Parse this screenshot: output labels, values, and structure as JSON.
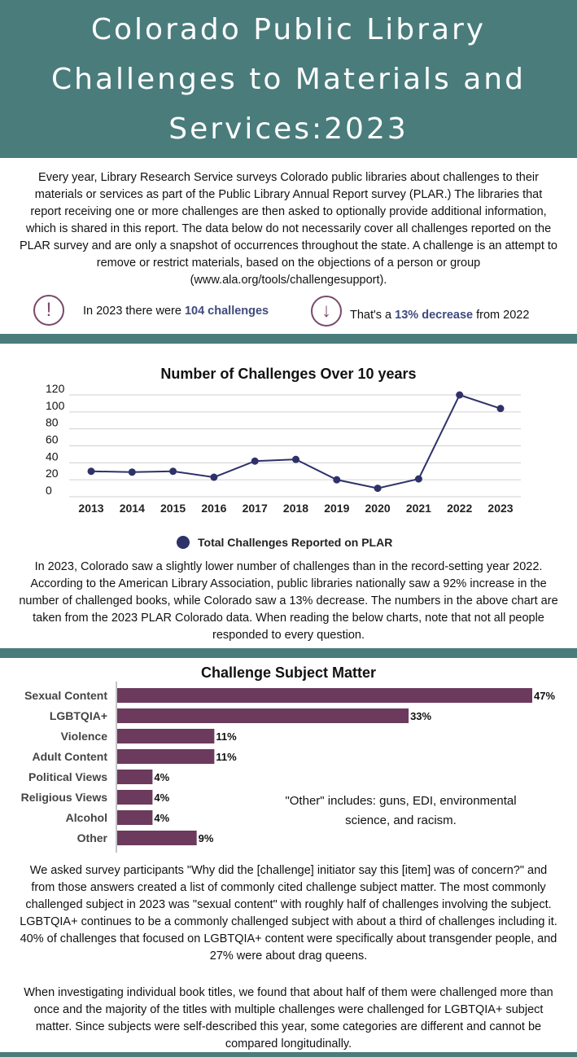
{
  "header": {
    "title_line1": "Colorado Public Library",
    "title_line2": "Challenges to Materials and",
    "title_line3": "Services:2023"
  },
  "intro": "Every year, Library Research Service surveys Colorado public libraries about challenges to their materials or services as part of the Public Library Annual Report survey (PLAR.) The libraries that report receiving one or more challenges are then asked to optionally provide additional information, which is shared in this report. The data below do not necessarily cover all challenges reported on the PLAR survey and are only a snapshot of occurrences throughout the state. A challenge is an attempt to remove or restrict materials, based on the objections of a person or group (www.ala.org/tools/challengesupport).",
  "stats": {
    "icon1": "!",
    "stat1_prefix": "In 2023 there were ",
    "stat1_bold": "104 challenges",
    "icon2": "↓",
    "stat2_prefix": "That's a ",
    "stat2_bold": "13% decrease",
    "stat2_suffix": " from 2022"
  },
  "colors": {
    "header": "#4a7c7c",
    "line": "#2e3269",
    "bar": "#6b3a5c",
    "accent_text": "#3f4a7e"
  },
  "chart_data": [
    {
      "type": "line",
      "title": "Number of Challenges Over 10 years",
      "x": [
        "2013",
        "2014",
        "2015",
        "2016",
        "2017",
        "2018",
        "2019",
        "2020",
        "2021",
        "2022",
        "2023"
      ],
      "series": [
        {
          "name": "Total Challenges Reported on PLAR",
          "values": [
            30,
            29,
            30,
            23,
            42,
            44,
            20,
            10,
            21,
            120,
            104
          ]
        }
      ],
      "ylim": [
        0,
        120
      ],
      "yticks": [
        "0",
        "20",
        "40",
        "60",
        "80",
        "100",
        "120"
      ],
      "grid": true,
      "legend": "bottom"
    },
    {
      "type": "bar",
      "orientation": "horizontal",
      "title": "Challenge Subject Matter",
      "categories": [
        "Sexual Content",
        "LGBTQIA+",
        "Violence",
        "Adult Content",
        "Political Views",
        "Religious Views",
        "Alcohol",
        "Other"
      ],
      "values": [
        47,
        33,
        11,
        11,
        4,
        4,
        4,
        9
      ],
      "labels": [
        "47%",
        "33%",
        "11%",
        "11%",
        "4%",
        "4%",
        "4%",
        "9%"
      ],
      "annotation": "\"Other\" includes: guns, EDI, environmental science, and racism."
    }
  ],
  "paragraph1": "In 2023, Colorado saw a slightly lower number of challenges than in the record-setting year 2022. According to the American Library Association, public libraries nationally saw a 92% increase in the number of challenged books, while Colorado saw a 13% decrease. The numbers in the above chart are taken from the 2023 PLAR Colorado data. When reading the below charts, note that not all people responded to every question.",
  "paragraph2": "We asked survey participants \"Why did the [challenge] initiator say this [item] was of concern?\" and from those answers created a list of commonly cited challenge subject matter. The most commonly challenged subject in 2023 was \"sexual content\" with roughly half of challenges involving the subject. LGBTQIA+ continues to be a commonly challenged subject with about a third of challenges including it. 40% of challenges that focused on LGBTQIA+ content were specifically about transgender people, and 27% were about drag queens.",
  "paragraph3": "When investigating individual book titles, we found that about half of them were challenged more than once and the majority of the titles with multiple challenges were challenged for LGBTQIA+ subject matter. Since subjects were self-described this year, some categories are different and cannot be compared longitudinally."
}
